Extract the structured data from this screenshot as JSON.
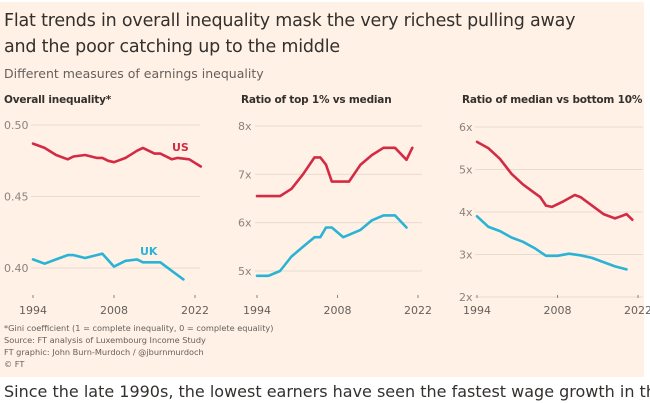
{
  "header": {
    "title_line1": "Flat trends in overall inequality mask the very richest pulling away",
    "title_line2": "and the poor catching up to the middle",
    "subtitle": "Different measures of earnings inequality"
  },
  "colors": {
    "background": "#fff1e5",
    "us": "#d42b45",
    "uk": "#2bb3d6",
    "grid": "#eadbcf",
    "text": "#33302e",
    "muted": "#66605c"
  },
  "chart_data": [
    {
      "type": "line",
      "title": "Overall inequality*",
      "xlabel": "",
      "ylabel": "",
      "xlim": [
        1994,
        2022
      ],
      "ylim": [
        0.4,
        0.5
      ],
      "y_ticks": [
        0.4,
        0.45,
        0.5
      ],
      "y_tick_labels": [
        "0.40",
        "0.45",
        "0.50"
      ],
      "x_ticks": [
        1994,
        2008,
        2022
      ],
      "x_tick_labels": [
        "1994",
        "2008",
        "2022"
      ],
      "grid": true,
      "series": [
        {
          "name": "US",
          "label": "US",
          "color": "#d42b45",
          "x": [
            1994,
            1996,
            1998,
            2000,
            2001,
            2003,
            2005,
            2006,
            2007,
            2008,
            2010,
            2012,
            2013,
            2015,
            2016,
            2018,
            2019,
            2021,
            2023
          ],
          "y": [
            0.487,
            0.484,
            0.479,
            0.476,
            0.478,
            0.479,
            0.477,
            0.477,
            0.475,
            0.474,
            0.477,
            0.482,
            0.484,
            0.48,
            0.48,
            0.476,
            0.477,
            0.476,
            0.471
          ]
        },
        {
          "name": "UK",
          "label": "UK",
          "color": "#2bb3d6",
          "x": [
            1994,
            1996,
            1998,
            2000,
            2001,
            2003,
            2005,
            2006,
            2008,
            2010,
            2012,
            2013,
            2014,
            2016,
            2018,
            2020
          ],
          "y": [
            0.406,
            0.403,
            0.406,
            0.409,
            0.409,
            0.407,
            0.409,
            0.41,
            0.401,
            0.405,
            0.406,
            0.404,
            0.404,
            0.404,
            0.398,
            0.392
          ]
        }
      ]
    },
    {
      "type": "line",
      "title": "Ratio of top 1% vs median",
      "xlabel": "",
      "ylabel": "",
      "xlim": [
        1994,
        2022
      ],
      "ylim": [
        5,
        8
      ],
      "y_ticks": [
        5,
        6,
        7,
        8
      ],
      "y_tick_labels": [
        "5x",
        "6x",
        "7x",
        "8x"
      ],
      "x_ticks": [
        1994,
        2008,
        2022
      ],
      "x_tick_labels": [
        "1994",
        "2008",
        "2022"
      ],
      "grid": true,
      "series": [
        {
          "name": "US",
          "color": "#d42b45",
          "x": [
            1994,
            1996,
            1998,
            2000,
            2002,
            2004,
            2005,
            2006,
            2007,
            2009,
            2010,
            2012,
            2014,
            2016,
            2018,
            2020,
            2021
          ],
          "y": [
            6.55,
            6.55,
            6.55,
            6.7,
            7.0,
            7.35,
            7.35,
            7.2,
            6.85,
            6.85,
            6.85,
            7.2,
            7.4,
            7.55,
            7.55,
            7.3,
            7.55
          ]
        },
        {
          "name": "UK",
          "color": "#2bb3d6",
          "x": [
            1994,
            1996,
            1998,
            2000,
            2002,
            2004,
            2005,
            2006,
            2007,
            2009,
            2010,
            2012,
            2014,
            2016,
            2018,
            2020
          ],
          "y": [
            4.9,
            4.9,
            5.0,
            5.3,
            5.5,
            5.7,
            5.7,
            5.9,
            5.9,
            5.7,
            5.75,
            5.85,
            6.05,
            6.15,
            6.15,
            5.9
          ]
        }
      ]
    },
    {
      "type": "line",
      "title": "Ratio of median vs bottom 10%",
      "xlabel": "",
      "ylabel": "",
      "xlim": [
        1994,
        2022
      ],
      "ylim": [
        2,
        6
      ],
      "y_ticks": [
        2,
        3,
        4,
        5,
        6
      ],
      "y_tick_labels": [
        "2x",
        "3x",
        "4x",
        "5x",
        "6x"
      ],
      "x_ticks": [
        1994,
        2008,
        2022
      ],
      "x_tick_labels": [
        "1994",
        "2008",
        "2022"
      ],
      "grid": true,
      "series": [
        {
          "name": "US",
          "color": "#d42b45",
          "x": [
            1994,
            1996,
            1998,
            2000,
            2002,
            2004,
            2005,
            2006,
            2007,
            2009,
            2011,
            2012,
            2014,
            2016,
            2018,
            2019,
            2020,
            2021
          ],
          "y": [
            5.65,
            5.5,
            5.25,
            4.9,
            4.65,
            4.45,
            4.35,
            4.15,
            4.12,
            4.25,
            4.4,
            4.35,
            4.15,
            3.95,
            3.85,
            3.9,
            3.95,
            3.82
          ]
        },
        {
          "name": "UK",
          "color": "#2bb3d6",
          "x": [
            1994,
            1996,
            1998,
            2000,
            2002,
            2004,
            2006,
            2008,
            2010,
            2012,
            2014,
            2016,
            2018,
            2020
          ],
          "y": [
            3.9,
            3.65,
            3.55,
            3.4,
            3.3,
            3.15,
            2.97,
            2.97,
            3.02,
            2.98,
            2.92,
            2.82,
            2.72,
            2.65
          ]
        }
      ]
    }
  ],
  "footer": {
    "note": "*Gini coefficient (1 = complete inequality, 0 = complete equality)",
    "source": "Source: FT analysis of Luxembourg Income Study",
    "graphic": "FT graphic: John Burn-Murdoch / @jburnmurdoch",
    "copyright": "© FT"
  },
  "cutoff_text": "Since the late 1990s, the lowest earners have seen the fastest wage growth in the"
}
